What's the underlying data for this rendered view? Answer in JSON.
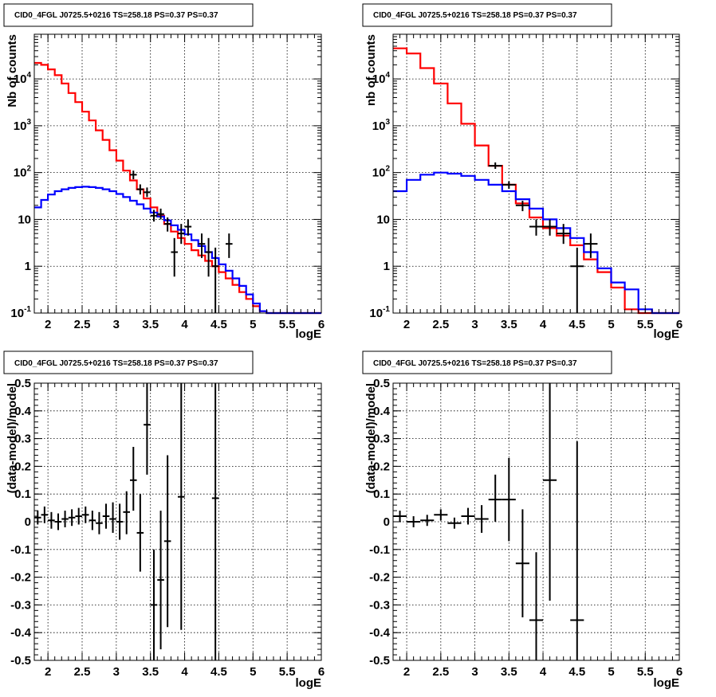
{
  "chart_data": [
    {
      "type": "line",
      "title": "CID0_4FGL J0725.5+0216 TS=258.18 PS=0.37 PS=0.37",
      "xlabel": "logE",
      "ylabel": "Nb of counts",
      "xlim": [
        1.8,
        6.0
      ],
      "ylim": [
        0.1,
        90000
      ],
      "yscale": "log",
      "grid": true,
      "x_ticks": [
        "2",
        "2.5",
        "3",
        "3.5",
        "4",
        "4.5",
        "5",
        "5.5",
        "6"
      ],
      "y_ticks": [
        {
          "base": "10",
          "exp": "-1",
          "label": "10-1"
        },
        {
          "base": "1",
          "exp": "",
          "label": "1"
        },
        {
          "base": "10",
          "exp": "",
          "label": "10"
        },
        {
          "base": "10",
          "exp": "2",
          "label": "102"
        },
        {
          "base": "10",
          "exp": "3",
          "label": "103"
        },
        {
          "base": "10",
          "exp": "4",
          "label": "104"
        }
      ],
      "bin_edges": [
        1.8,
        1.9,
        2.0,
        2.1,
        2.2,
        2.3,
        2.4,
        2.5,
        2.6,
        2.7,
        2.8,
        2.9,
        3.0,
        3.1,
        3.2,
        3.3,
        3.4,
        3.5,
        3.6,
        3.7,
        3.8,
        3.9,
        4.0,
        4.1,
        4.2,
        4.3,
        4.4,
        4.5,
        4.6,
        4.7,
        4.8,
        4.9,
        5.0,
        5.1,
        5.2,
        5.3,
        5.4,
        5.5,
        5.6,
        5.7,
        5.8,
        5.9,
        6.0
      ],
      "series": [
        {
          "color": "#ff0000",
          "style": "step",
          "values": [
            22000,
            20000,
            16000,
            12000,
            8000,
            5000,
            3200,
            2000,
            1300,
            800,
            500,
            300,
            180,
            110,
            68,
            44,
            28,
            18,
            12,
            8,
            5.5,
            4.0,
            3.0,
            2.2,
            1.7,
            1.3,
            1.0,
            0.75,
            0.55,
            0.4,
            0.28,
            0.2,
            0.14,
            0.11,
            0.1,
            0.1,
            0.1,
            0.1,
            0.1,
            0.1,
            0.1,
            0.1
          ]
        },
        {
          "color": "#0000ff",
          "style": "step",
          "values": [
            18,
            26,
            34,
            40,
            44,
            47,
            49,
            50,
            49,
            47,
            44,
            40,
            35,
            30,
            25,
            21,
            17,
            14,
            11.5,
            9.5,
            7.5,
            6.0,
            4.8,
            3.6,
            2.7,
            2.0,
            1.5,
            1.1,
            0.8,
            0.55,
            0.38,
            0.25,
            0.16,
            0.11,
            0.1,
            0.1,
            0.1,
            0.1,
            0.1,
            0.1,
            0.1,
            0.1
          ]
        },
        {
          "color": "#000000",
          "style": "points",
          "points": [
            {
              "x": 3.25,
              "y": 90,
              "ylo": 72,
              "yhi": 110,
              "xerr": 0.05
            },
            {
              "x": 3.35,
              "y": 44,
              "ylo": 34,
              "yhi": 56,
              "xerr": 0.05
            },
            {
              "x": 3.45,
              "y": 38,
              "ylo": 30,
              "yhi": 48,
              "xerr": 0.05
            },
            {
              "x": 3.55,
              "y": 12,
              "ylo": 9,
              "yhi": 16,
              "xerr": 0.05
            },
            {
              "x": 3.65,
              "y": 13,
              "ylo": 10,
              "yhi": 17,
              "xerr": 0.05
            },
            {
              "x": 3.75,
              "y": 8,
              "ylo": 5.5,
              "yhi": 11,
              "xerr": 0.05
            },
            {
              "x": 3.85,
              "y": 2,
              "ylo": 0.6,
              "yhi": 4,
              "xerr": 0.05
            },
            {
              "x": 3.95,
              "y": 5,
              "ylo": 3,
              "yhi": 8,
              "xerr": 0.05
            },
            {
              "x": 4.05,
              "y": 7,
              "ylo": 4.5,
              "yhi": 10,
              "xerr": 0.05
            },
            {
              "x": 4.25,
              "y": 3,
              "ylo": 1.5,
              "yhi": 5,
              "xerr": 0.05
            },
            {
              "x": 4.35,
              "y": 2,
              "ylo": 0.6,
              "yhi": 4,
              "xerr": 0.05
            },
            {
              "x": 4.45,
              "y": 1,
              "ylo": 0.1,
              "yhi": 2.5,
              "xerr": 0.05
            },
            {
              "x": 4.65,
              "y": 3,
              "ylo": 1.5,
              "yhi": 5,
              "xerr": 0.05
            }
          ]
        }
      ]
    },
    {
      "type": "line",
      "title": "CID0_4FGL J0725.5+0216 TS=258.18 PS=0.37 PS=0.37",
      "xlabel": "logE",
      "ylabel": "nb of counts",
      "xlim": [
        1.8,
        6.0
      ],
      "ylim": [
        0.1,
        90000
      ],
      "yscale": "log",
      "grid": true,
      "x_ticks": [
        "2",
        "2.5",
        "3",
        "3.5",
        "4",
        "4.5",
        "5",
        "5.5",
        "6"
      ],
      "y_ticks": [
        {
          "base": "10",
          "exp": "-1",
          "label": "10-1"
        },
        {
          "base": "1",
          "exp": "",
          "label": "1"
        },
        {
          "base": "10",
          "exp": "",
          "label": "10"
        },
        {
          "base": "10",
          "exp": "2",
          "label": "102"
        },
        {
          "base": "10",
          "exp": "3",
          "label": "103"
        },
        {
          "base": "10",
          "exp": "4",
          "label": "104"
        }
      ],
      "bin_edges": [
        1.8,
        2.0,
        2.2,
        2.4,
        2.6,
        2.8,
        3.0,
        3.2,
        3.4,
        3.6,
        3.8,
        4.0,
        4.2,
        4.4,
        4.6,
        4.8,
        5.0,
        5.2,
        5.4,
        5.6,
        5.8,
        6.0
      ],
      "series": [
        {
          "color": "#ff0000",
          "style": "step",
          "values": [
            45000,
            35000,
            17000,
            8000,
            3000,
            1100,
            380,
            140,
            55,
            22,
            11,
            6.5,
            4.5,
            2.8,
            1.4,
            0.75,
            0.35,
            0.12,
            0.1,
            0.1,
            0.1
          ]
        },
        {
          "color": "#0000ff",
          "style": "step",
          "values": [
            40,
            70,
            90,
            100,
            95,
            85,
            70,
            55,
            40,
            27,
            17,
            10,
            6.5,
            4.0,
            2.0,
            0.9,
            0.45,
            0.32,
            0.12,
            0.1,
            0.1
          ]
        },
        {
          "color": "#000000",
          "style": "points",
          "points": [
            {
              "x": 3.3,
              "y": 140,
              "ylo": 120,
              "yhi": 165,
              "xerr": 0.1
            },
            {
              "x": 3.5,
              "y": 55,
              "ylo": 45,
              "yhi": 65,
              "xerr": 0.1
            },
            {
              "x": 3.7,
              "y": 20,
              "ylo": 15,
              "yhi": 25,
              "xerr": 0.1
            },
            {
              "x": 3.9,
              "y": 7,
              "ylo": 4.5,
              "yhi": 10,
              "xerr": 0.1
            },
            {
              "x": 4.1,
              "y": 7,
              "ylo": 4.5,
              "yhi": 10,
              "xerr": 0.1
            },
            {
              "x": 4.3,
              "y": 5,
              "ylo": 3,
              "yhi": 8,
              "xerr": 0.1
            },
            {
              "x": 4.5,
              "y": 1,
              "ylo": 0.1,
              "yhi": 2.5,
              "xerr": 0.1
            },
            {
              "x": 4.7,
              "y": 3,
              "ylo": 1.5,
              "yhi": 5,
              "xerr": 0.1
            }
          ]
        }
      ]
    },
    {
      "type": "scatter",
      "title": "CID0_4FGL J0725.5+0216 TS=258.18 PS=0.37 PS=0.37",
      "xlabel": "logE",
      "ylabel": "(data-model)/model",
      "xlim": [
        1.8,
        6.0
      ],
      "ylim": [
        -0.5,
        0.5
      ],
      "yscale": "linear",
      "grid": true,
      "x_ticks": [
        "2",
        "2.5",
        "3",
        "3.5",
        "4",
        "4.5",
        "5",
        "5.5",
        "6"
      ],
      "y_ticks": [
        {
          "base": "-0.5"
        },
        {
          "base": "-0.4"
        },
        {
          "base": "-0.3"
        },
        {
          "base": "-0.2"
        },
        {
          "base": "-0.1"
        },
        {
          "base": "0"
        },
        {
          "base": "0.1"
        },
        {
          "base": "0.2"
        },
        {
          "base": "0.3"
        },
        {
          "base": "0.4"
        },
        {
          "base": "0.5"
        }
      ],
      "series": [
        {
          "color": "#000000",
          "style": "points",
          "points": [
            {
              "x": 1.85,
              "y": 0.015,
              "ylo": -0.01,
              "yhi": 0.04,
              "xerr": 0.05
            },
            {
              "x": 1.95,
              "y": 0.025,
              "ylo": -0.005,
              "yhi": 0.055,
              "xerr": 0.05
            },
            {
              "x": 2.05,
              "y": 0.005,
              "ylo": -0.025,
              "yhi": 0.035,
              "xerr": 0.05
            },
            {
              "x": 2.15,
              "y": 0.0,
              "ylo": -0.03,
              "yhi": 0.03,
              "xerr": 0.05
            },
            {
              "x": 2.25,
              "y": 0.01,
              "ylo": -0.02,
              "yhi": 0.04,
              "xerr": 0.05
            },
            {
              "x": 2.35,
              "y": 0.015,
              "ylo": -0.015,
              "yhi": 0.045,
              "xerr": 0.05
            },
            {
              "x": 2.45,
              "y": 0.02,
              "ylo": -0.01,
              "yhi": 0.05,
              "xerr": 0.05
            },
            {
              "x": 2.55,
              "y": 0.025,
              "ylo": -0.005,
              "yhi": 0.055,
              "xerr": 0.05
            },
            {
              "x": 2.65,
              "y": 0.005,
              "ylo": -0.03,
              "yhi": 0.04,
              "xerr": 0.05
            },
            {
              "x": 2.75,
              "y": -0.005,
              "ylo": -0.045,
              "yhi": 0.035,
              "xerr": 0.05
            },
            {
              "x": 2.85,
              "y": 0.02,
              "ylo": -0.025,
              "yhi": 0.065,
              "xerr": 0.05
            },
            {
              "x": 2.95,
              "y": 0.01,
              "ylo": -0.04,
              "yhi": 0.07,
              "xerr": 0.05
            },
            {
              "x": 3.05,
              "y": 0.0,
              "ylo": -0.065,
              "yhi": 0.065,
              "xerr": 0.05
            },
            {
              "x": 3.15,
              "y": 0.035,
              "ylo": -0.045,
              "yhi": 0.11,
              "xerr": 0.05
            },
            {
              "x": 3.25,
              "y": 0.15,
              "ylo": 0.04,
              "yhi": 0.27,
              "xerr": 0.05
            },
            {
              "x": 3.35,
              "y": -0.04,
              "ylo": -0.18,
              "yhi": 0.1,
              "xerr": 0.05
            },
            {
              "x": 3.45,
              "y": 0.35,
              "ylo": 0.17,
              "yhi": 0.5,
              "xerr": 0.05
            },
            {
              "x": 3.55,
              "y": -0.3,
              "ylo": -0.5,
              "yhi": -0.1,
              "xerr": 0.05
            },
            {
              "x": 3.65,
              "y": -0.21,
              "ylo": -0.46,
              "yhi": 0.04,
              "xerr": 0.05
            },
            {
              "x": 3.75,
              "y": -0.07,
              "ylo": -0.38,
              "yhi": 0.24,
              "xerr": 0.05
            },
            {
              "x": 3.95,
              "y": 0.09,
              "ylo": -0.39,
              "yhi": 0.5,
              "xerr": 0.05
            },
            {
              "x": 4.45,
              "y": 0.085,
              "ylo": -0.5,
              "yhi": 0.5,
              "xerr": 0.05
            }
          ]
        }
      ]
    },
    {
      "type": "scatter",
      "title": "CID0_4FGL J0725.5+0216 TS=258.18 PS=0.37 PS=0.37",
      "xlabel": "logE",
      "ylabel": "(data-model)/model",
      "xlim": [
        1.8,
        6.0
      ],
      "ylim": [
        -0.5,
        0.5
      ],
      "yscale": "linear",
      "grid": true,
      "x_ticks": [
        "2",
        "2.5",
        "3",
        "3.5",
        "4",
        "4.5",
        "5",
        "5.5",
        "6"
      ],
      "y_ticks": [
        {
          "base": "-0.5"
        },
        {
          "base": "-0.4"
        },
        {
          "base": "-0.3"
        },
        {
          "base": "-0.2"
        },
        {
          "base": "-0.1"
        },
        {
          "base": "0"
        },
        {
          "base": "0.1"
        },
        {
          "base": "0.2"
        },
        {
          "base": "0.3"
        },
        {
          "base": "0.4"
        },
        {
          "base": "0.5"
        }
      ],
      "series": [
        {
          "color": "#000000",
          "style": "points",
          "points": [
            {
              "x": 1.9,
              "y": 0.02,
              "ylo": 0.0,
              "yhi": 0.04,
              "xerr": 0.1
            },
            {
              "x": 2.1,
              "y": 0.0,
              "ylo": -0.02,
              "yhi": 0.02,
              "xerr": 0.1
            },
            {
              "x": 2.3,
              "y": 0.005,
              "ylo": -0.015,
              "yhi": 0.025,
              "xerr": 0.1
            },
            {
              "x": 2.5,
              "y": 0.025,
              "ylo": 0.005,
              "yhi": 0.045,
              "xerr": 0.1
            },
            {
              "x": 2.7,
              "y": -0.005,
              "ylo": -0.025,
              "yhi": 0.015,
              "xerr": 0.1
            },
            {
              "x": 2.9,
              "y": 0.02,
              "ylo": -0.01,
              "yhi": 0.05,
              "xerr": 0.1
            },
            {
              "x": 3.1,
              "y": 0.01,
              "ylo": -0.04,
              "yhi": 0.06,
              "xerr": 0.1
            },
            {
              "x": 3.3,
              "y": 0.08,
              "ylo": 0.0,
              "yhi": 0.17,
              "xerr": 0.1
            },
            {
              "x": 3.5,
              "y": 0.08,
              "ylo": -0.07,
              "yhi": 0.23,
              "xerr": 0.1
            },
            {
              "x": 3.7,
              "y": -0.15,
              "ylo": -0.345,
              "yhi": 0.045,
              "xerr": 0.1
            },
            {
              "x": 3.9,
              "y": -0.355,
              "ylo": -0.5,
              "yhi": -0.11,
              "xerr": 0.1
            },
            {
              "x": 4.1,
              "y": 0.15,
              "ylo": -0.285,
              "yhi": 0.5,
              "xerr": 0.1
            },
            {
              "x": 4.5,
              "y": -0.355,
              "ylo": -0.5,
              "yhi": 0.29,
              "xerr": 0.1
            }
          ]
        }
      ]
    }
  ]
}
